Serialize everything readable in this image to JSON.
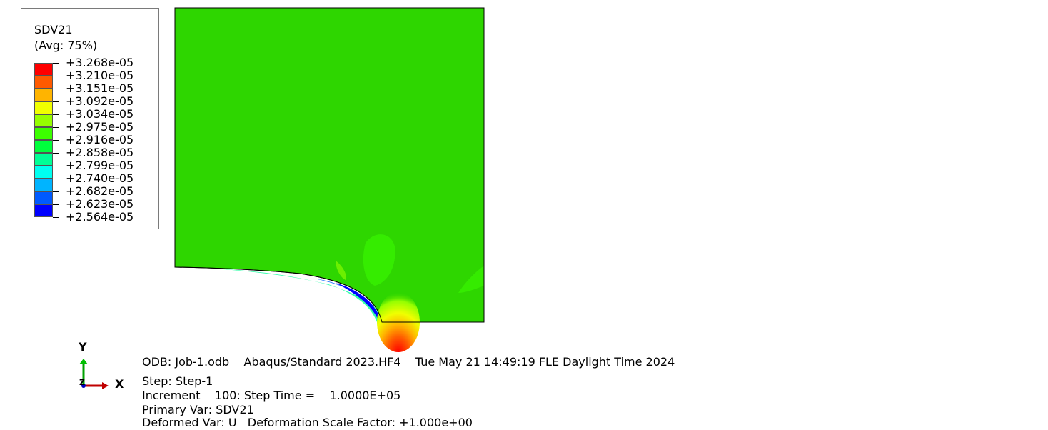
{
  "legend": {
    "variable": "SDV21",
    "averaging": "(Avg: 75%)",
    "levels": [
      {
        "label": "+3.268e-05",
        "color": "#ff0000"
      },
      {
        "label": "+3.210e-05",
        "color": "#ff5a00"
      },
      {
        "label": "+3.151e-05",
        "color": "#ffb400"
      },
      {
        "label": "+3.092e-05",
        "color": "#f0ff00"
      },
      {
        "label": "+3.034e-05",
        "color": "#96ff00"
      },
      {
        "label": "+2.975e-05",
        "color": "#3cff00"
      },
      {
        "label": "+2.916e-05",
        "color": "#00ff3c"
      },
      {
        "label": "+2.858e-05",
        "color": "#00ff96"
      },
      {
        "label": "+2.799e-05",
        "color": "#00fff0"
      },
      {
        "label": "+2.740e-05",
        "color": "#00b4ff"
      },
      {
        "label": "+2.682e-05",
        "color": "#005aff"
      },
      {
        "label": "+2.623e-05",
        "color": "#0000ff"
      },
      {
        "label": "+2.564e-05",
        "color": ""
      }
    ]
  },
  "triad": {
    "y": "Y",
    "x": "X",
    "z": "Z"
  },
  "info": {
    "odb_line": "ODB: Job-1.odb    Abaqus/Standard 2023.HF4    Tue May 21 14:49:19 FLE Daylight Time 2024",
    "step": "Step: Step-1",
    "increment": "Increment    100: Step Time =    1.0000E+05",
    "primary_var": "Primary Var: SDV21",
    "deformed_var": "Deformed Var: U   Deformation Scale Factor: +1.000e+00"
  },
  "colors": {
    "plate": "#2ed600",
    "plate_edge": "#000000",
    "background": "#ffffff"
  }
}
